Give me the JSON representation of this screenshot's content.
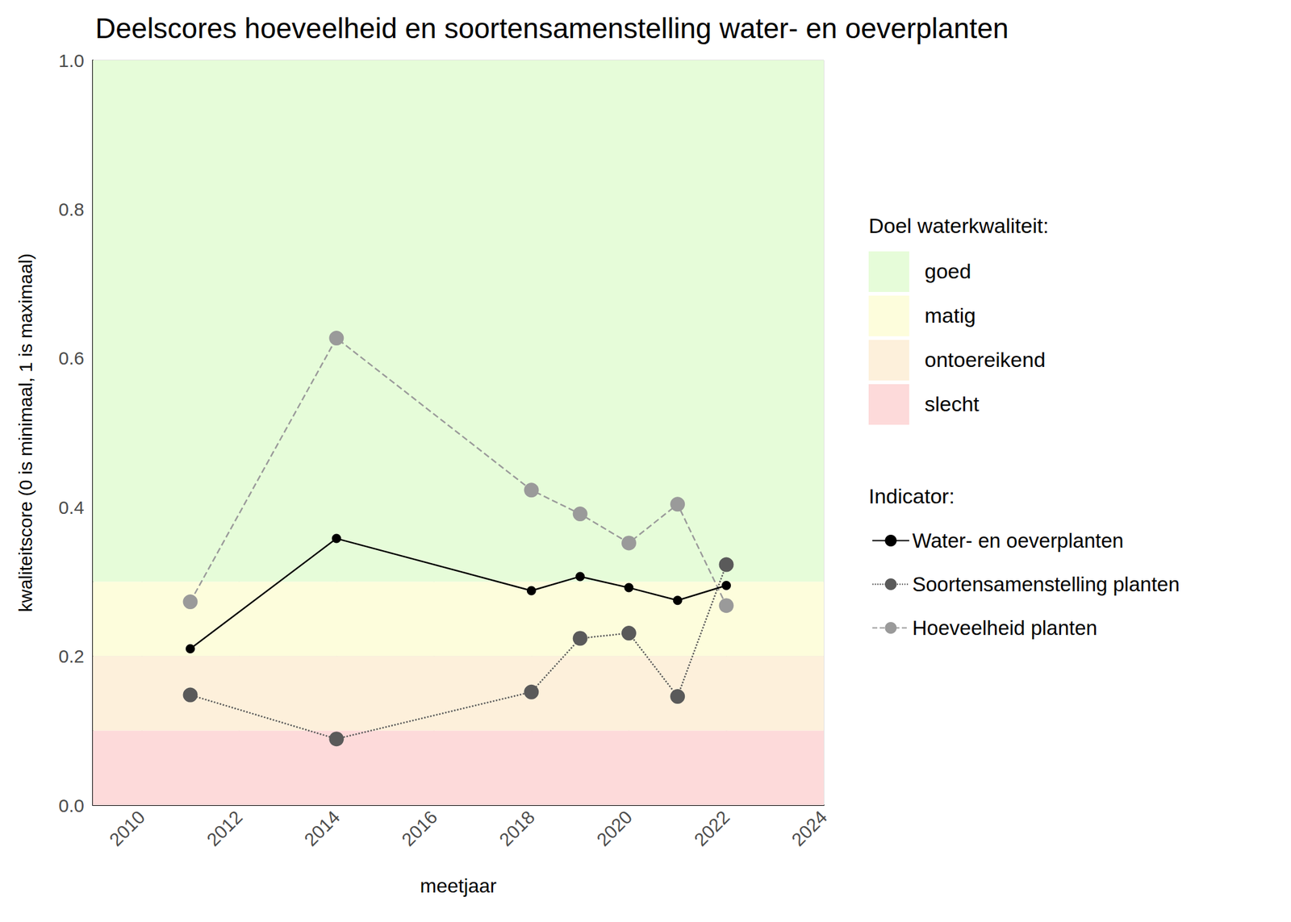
{
  "chart_data": {
    "type": "line",
    "title": "Deelscores hoeveelheid en soortensamenstelling water- en oeverplanten",
    "x_label": "meetjaar",
    "y_label": "kwaliteitscore (0 is minimaal, 1 is maximaal)",
    "xlim": [
      2009,
      2024
    ],
    "xticks": [
      2010,
      2012,
      2014,
      2016,
      2018,
      2020,
      2022,
      2024
    ],
    "ylim": [
      0,
      1
    ],
    "yticks": [
      {
        "value": 0,
        "label": "0.0"
      },
      0.2,
      0.4,
      0.6,
      0.8,
      {
        "value": 1,
        "label": "1.0"
      }
    ],
    "grid": true,
    "legend": "right",
    "band_legend_title": "Doel waterkwaliteit:",
    "bands": [
      {
        "name": "goed",
        "color": "#e6fcd9",
        "from": 0.3,
        "to": 1
      },
      {
        "name": "matig",
        "color": "#fdfddc",
        "from": 0.2,
        "to": 0.3
      },
      {
        "name": "ontoereikend",
        "color": "#fdf0db",
        "from": 0.1,
        "to": 0.2
      },
      {
        "name": "slecht",
        "color": "#fddada",
        "from": 0,
        "to": 0.1
      }
    ],
    "legend_title": "Indicator:",
    "x": [
      2011,
      2014,
      2018,
      2019,
      2020,
      2021,
      2022
    ],
    "series": [
      {
        "name": "Water- en oeverplanten",
        "color": "#000000",
        "marker": "circle",
        "line_style": "solid",
        "values": [
          0.21,
          0.358,
          0.288,
          0.307,
          0.292,
          0.275,
          0.295
        ]
      },
      {
        "name": "Soortensamenstelling planten",
        "color": "#5a5a5a",
        "marker": "circle",
        "line_style": "dotted",
        "values": [
          0.148,
          0.089,
          0.152,
          0.224,
          0.231,
          0.146,
          0.323
        ]
      },
      {
        "name": "Hoeveelheid planten",
        "color": "#9a9a9a",
        "marker": "circle",
        "line_style": "dashed",
        "values": [
          0.273,
          0.627,
          0.423,
          0.391,
          0.352,
          0.404,
          0.268
        ]
      }
    ]
  }
}
